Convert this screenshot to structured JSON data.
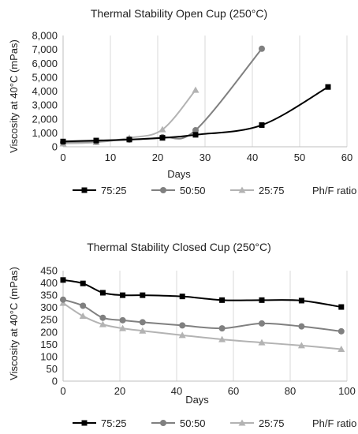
{
  "chart_data": [
    {
      "type": "line",
      "title": "Thermal Stability Open Cup (250°C)",
      "xlabel": "Days",
      "ylabel": "Viscosity at 40°C (mPas)",
      "xlim": [
        0,
        60
      ],
      "ylim": [
        0,
        8000
      ],
      "xticks": [
        "0",
        "10",
        "20",
        "30",
        "40",
        "50",
        "60"
      ],
      "yticks": [
        "0",
        "1,000",
        "2,000",
        "3,000",
        "4,000",
        "5,000",
        "6,000",
        "7,000",
        "8,000"
      ],
      "grid": "vertical",
      "legend_position": "bottom",
      "legend_suffix": "Ph/F ratio",
      "series": [
        {
          "name": "75:25",
          "color": "#000000",
          "marker": "square",
          "x": [
            0,
            7,
            14,
            21,
            28,
            42,
            56
          ],
          "y": [
            380,
            450,
            520,
            640,
            860,
            1560,
            4300
          ]
        },
        {
          "name": "50:50",
          "color": "#808080",
          "marker": "circle",
          "x": [
            0,
            7,
            14,
            21,
            28,
            42
          ],
          "y": [
            330,
            390,
            520,
            680,
            1190,
            7050
          ]
        },
        {
          "name": "25:75",
          "color": "#b3b3b3",
          "marker": "triangle",
          "x": [
            0,
            7,
            14,
            21,
            28
          ],
          "y": [
            230,
            320,
            640,
            1240,
            4080
          ]
        }
      ]
    },
    {
      "type": "line",
      "title": "Thermal Stability Closed Cup (250°C)",
      "xlabel": "Days",
      "ylabel": "Viscosity at 40°C (mPas)",
      "xlim": [
        0,
        100
      ],
      "ylim": [
        0,
        450
      ],
      "xticks": [
        "0",
        "20",
        "40",
        "60",
        "80",
        "100"
      ],
      "yticks": [
        "0",
        "50",
        "100",
        "150",
        "200",
        "250",
        "300",
        "350",
        "400",
        "450"
      ],
      "grid": "vertical",
      "legend_position": "bottom",
      "legend_suffix": "Ph/F ratio",
      "series": [
        {
          "name": "75:25",
          "color": "#000000",
          "marker": "square",
          "x": [
            0,
            7,
            14,
            21,
            28,
            42,
            56,
            70,
            84,
            98
          ],
          "y": [
            412,
            398,
            360,
            350,
            350,
            345,
            330,
            330,
            328,
            302
          ]
        },
        {
          "name": "50:50",
          "color": "#808080",
          "marker": "circle",
          "x": [
            0,
            7,
            14,
            21,
            28,
            42,
            56,
            70,
            84,
            98
          ],
          "y": [
            332,
            307,
            258,
            248,
            240,
            227,
            215,
            235,
            223,
            203
          ]
        },
        {
          "name": "25:75",
          "color": "#b3b3b3",
          "marker": "triangle",
          "x": [
            0,
            7,
            14,
            21,
            28,
            42,
            56,
            70,
            84,
            98
          ],
          "y": [
            318,
            265,
            231,
            215,
            205,
            187,
            170,
            157,
            145,
            130
          ]
        }
      ]
    }
  ]
}
